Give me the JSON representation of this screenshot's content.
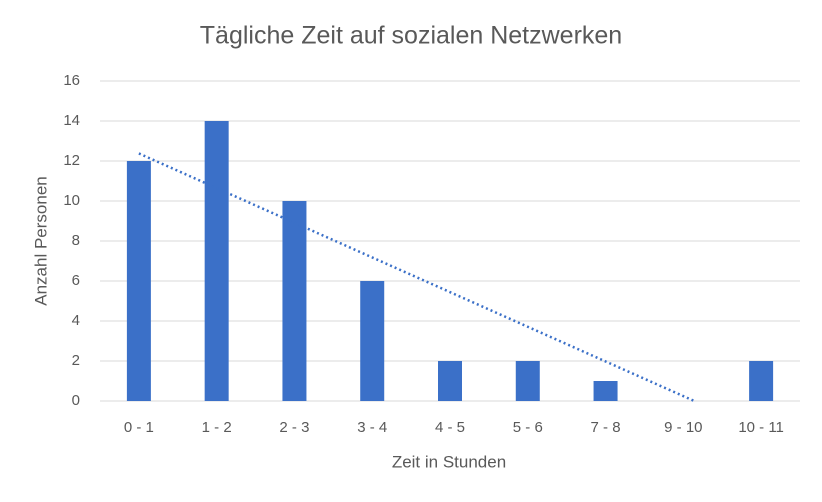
{
  "chart_data": {
    "type": "bar",
    "title": "Tägliche Zeit auf sozialen Netzwerken",
    "x_label": "Zeit in Stunden",
    "y_label": "Anzahl Personen",
    "categories": [
      "0 - 1",
      "1 - 2",
      "2 - 3",
      "3 - 4",
      "4 - 5",
      "5 - 6",
      "7 - 8",
      "9 - 10",
      "10 - 11"
    ],
    "values": [
      12,
      14,
      10,
      6,
      2,
      2,
      1,
      0,
      2
    ],
    "color": "#3b70c8",
    "trendline": "linear",
    "ylim": [
      0,
      16
    ],
    "yticks": [
      0,
      2,
      4,
      6,
      8,
      10,
      12,
      14,
      16
    ],
    "grid": true
  }
}
